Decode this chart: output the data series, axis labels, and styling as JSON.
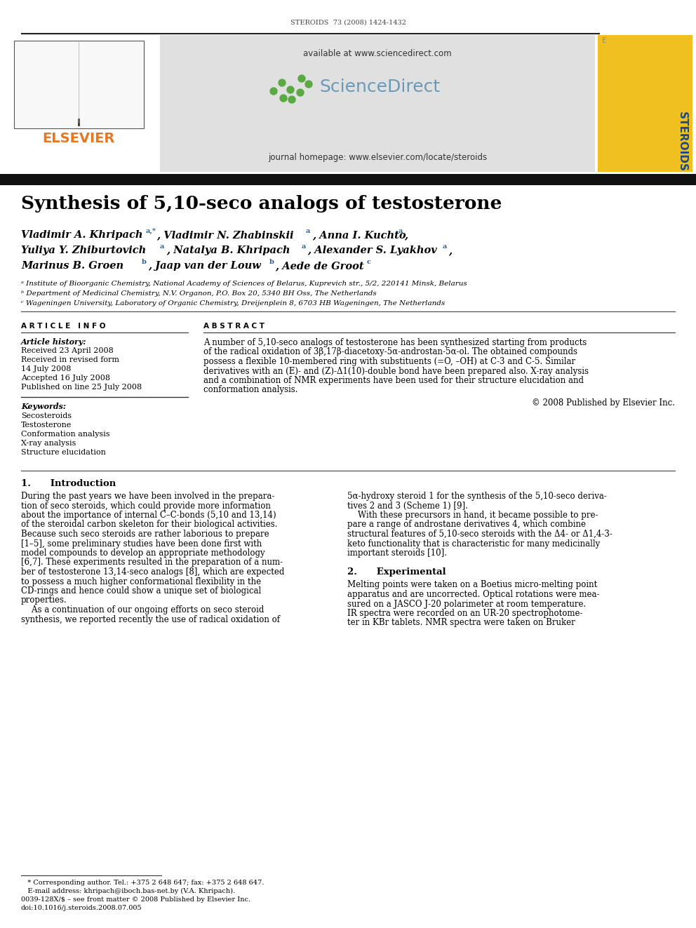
{
  "bg_color": "#ffffff",
  "journal_header": "STEROIDS  73 (2008) 1424-1432",
  "header_line_color": "#1a1a1a",
  "elsevier_color": "#E87722",
  "sciencedirect_bg": "#e0e0e0",
  "steroids_bg": "#f0c020",
  "available_text": "available at www.sciencedirect.com",
  "journal_homepage": "journal homepage: www.elsevier.com/locate/steroids",
  "title": "Synthesis of 5,10-seco analogs of testosterone",
  "affil_a": "ᵃ Institute of Bioorganic Chemistry, National Academy of Sciences of Belarus, Kuprevich str., 5/2, 220141 Minsk, Belarus",
  "affil_b": "ᵇ Department of Medicinal Chemistry, N.V. Organon, P.O. Box 20, 5340 BH Oss, The Netherlands",
  "affil_c": "ᶜ Wageningen University, Laboratory of Organic Chemistry, Dreijenplein 8, 6703 HB Wageningen, The Netherlands",
  "article_info_title": "A R T I C L E   I N F O",
  "abstract_title": "A B S T R A C T",
  "article_history_label": "Article history:",
  "received1": "Received 23 April 2008",
  "received2": "Received in revised form",
  "received2b": "14 July 2008",
  "accepted": "Accepted 16 July 2008",
  "published": "Published on line 25 July 2008",
  "keywords_label": "Keywords:",
  "keyword1": "Secosteroids",
  "keyword2": "Testosterone",
  "keyword3": "Conformation analysis",
  "keyword4": "X-ray analysis",
  "keyword5": "Structure elucidation",
  "abstract_lines": [
    "A number of 5,10-seco analogs of testosterone has been synthesized starting from products",
    "of the radical oxidation of 3β,17β-diacetoxy-5α-androstan-5α-ol. The obtained compounds",
    "possess a flexible 10-membered ring with substituents (=O, –OH) at C-3 and C-5. Similar",
    "derivatives with an (E)- and (Z)-Δ1(10)-double bond have been prepared also. X-ray analysis",
    "and a combination of NMR experiments have been used for their structure elucidation and",
    "conformation analysis."
  ],
  "copyright": "© 2008 Published by Elsevier Inc.",
  "section1_title": "1.      Introduction",
  "intro_left_lines": [
    "During the past years we have been involved in the prepara-",
    "tion of seco steroids, which could provide more information",
    "about the importance of internal C–C-bonds (5,10 and 13,14)",
    "of the steroidal carbon skeleton for their biological activities.",
    "Because such seco steroids are rather laborious to prepare",
    "[1–5], some preliminary studies have been done first with",
    "model compounds to develop an appropriate methodology",
    "[6,7]. These experiments resulted in the preparation of a num-",
    "ber of testosterone 13,14-seco analogs [8], which are expected",
    "to possess a much higher conformational flexibility in the",
    "CD-rings and hence could show a unique set of biological",
    "properties.",
    "    As a continuation of our ongoing efforts on seco steroid",
    "synthesis, we reported recently the use of radical oxidation of"
  ],
  "intro_right_lines": [
    "5α-hydroxy steroid 1 for the synthesis of the 5,10-seco deriva-",
    "tives 2 and 3 (Scheme 1) [9].",
    "    With these precursors in hand, it became possible to pre-",
    "pare a range of androstane derivatives 4, which combine",
    "structural features of 5,10-seco steroids with the Δ4- or Δ1,4-3-",
    "keto functionality that is characteristic for many medicinally",
    "important steroids [10]."
  ],
  "section2_title": "2.      Experimental",
  "exp_lines": [
    "Melting points were taken on a Boetius micro-melting point",
    "apparatus and are uncorrected. Optical rotations were mea-",
    "sured on a JASCO J-20 polarimeter at room temperature.",
    "IR spectra were recorded on an UR-20 spectrophotome-",
    "ter in KBr tablets. NMR spectra were taken on Bruker"
  ],
  "footnote_star": "   * Corresponding author. Tel.: +375 2 648 647; fax: +375 2 648 647.",
  "footnote_email": "   E-mail address: khripach@iboch.bas-net.by (V.A. Khripach).",
  "footnote_issn": "0039-128X/$ – see front matter © 2008 Published by Elsevier Inc.",
  "footnote_doi": "doi:10.1016/j.steroids.2008.07.005",
  "superscript_color": "#1a5faa",
  "divider_color": "#444444"
}
